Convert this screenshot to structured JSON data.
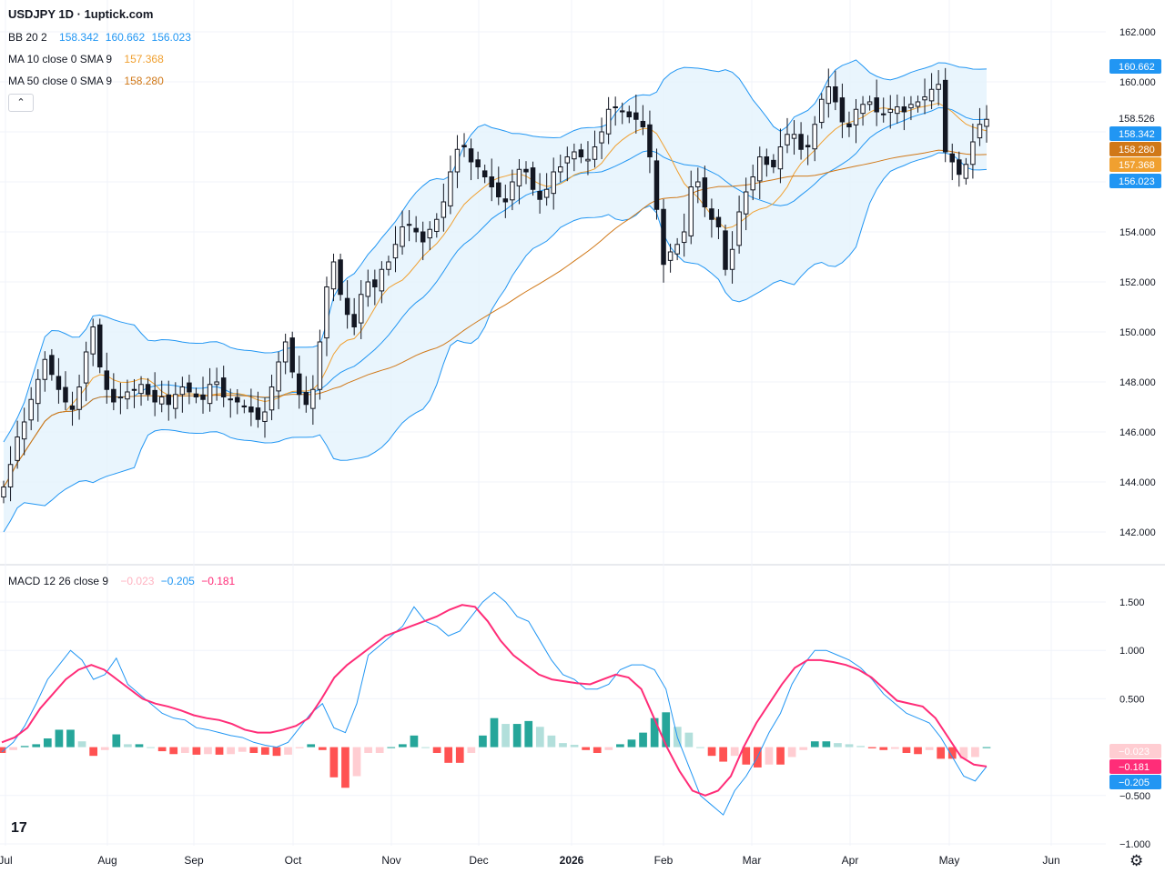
{
  "title": "USDJPY 1D · 1uptick.com",
  "legend": {
    "bb": {
      "label": "BB 20 2",
      "v1": "158.342",
      "v2": "160.662",
      "v3": "156.023"
    },
    "ma10": {
      "label": "MA 10 close 0 SMA 9",
      "value": "157.368"
    },
    "ma50": {
      "label": "MA 50 close 0 SMA 9",
      "value": "158.280"
    },
    "macd": {
      "label": "MACD 12 26 close 9",
      "v1": "−0.023",
      "v2": "−0.205",
      "v3": "−0.181"
    }
  },
  "collapse_icon": "chevron-up-icon",
  "settings_icon": "gear-icon",
  "logo_text": "17",
  "colors": {
    "up": "#ffffff",
    "down": "#131722",
    "wick": "#131722",
    "bb": "#2196f3",
    "bb_fill": "#e3f2fd",
    "ma10": "#f0a030",
    "ma50": "#d07818",
    "macd": "#2196f3",
    "signal": "#ff2d78",
    "hist_up_strong": "#26a69a",
    "hist_up_weak": "#b2dfdb",
    "hist_dn_strong": "#ff5252",
    "hist_dn_weak": "#ffcdd2"
  },
  "chart_data": [
    {
      "type": "candlestick",
      "title": "USDJPY 1D",
      "ylim": [
        141,
        162.2
      ],
      "yticks": [
        "162.000",
        "160.000",
        "158.000",
        "156.000",
        "154.000",
        "152.000",
        "150.000",
        "148.000",
        "146.000",
        "144.000",
        "142.000"
      ],
      "ytick_values": [
        162,
        160,
        158,
        156,
        154,
        152,
        150,
        148,
        146,
        144,
        142
      ],
      "xticks": [
        "Jul",
        "Aug",
        "Sep",
        "Oct",
        "Nov",
        "Dec",
        "2026",
        "Feb",
        "Mar",
        "Apr",
        "May",
        "Jun"
      ],
      "close_approx": [
        143.8,
        144.7,
        145.8,
        146.4,
        147.3,
        148.1,
        148.9,
        148.3,
        147.7,
        147.2,
        146.9,
        147.8,
        149.2,
        150.2,
        148.6,
        147.7,
        147.2,
        147.4,
        147.6,
        147.7,
        147.9,
        147.5,
        147.2,
        147.4,
        147.1,
        147.5,
        147.8,
        147.6,
        147.4,
        147.3,
        147.9,
        148.0,
        147.4,
        147.3,
        147.2,
        147.0,
        146.8,
        146.5,
        146.8,
        147.8,
        148.8,
        149.6,
        148.4,
        147.5,
        147.1,
        147.7,
        149.6,
        151.8,
        152.8,
        151.5,
        150.7,
        150.2,
        151.5,
        152.0,
        151.8,
        152.5,
        152.8,
        153.5,
        154.2,
        154.3,
        154.0,
        153.6,
        154.1,
        154.5,
        155.2,
        156.4,
        157.3,
        157.4,
        156.8,
        156.6,
        156.2,
        155.8,
        155.4,
        155.2,
        156.0,
        156.5,
        156.4,
        155.7,
        155.3,
        155.7,
        156.4,
        156.6,
        157.0,
        157.2,
        157.0,
        156.9,
        157.4,
        158.0,
        158.9,
        159.0,
        158.8,
        158.6,
        158.5,
        158.2,
        157.0,
        154.9,
        152.7,
        153.2,
        153.5,
        154.0,
        155.8,
        156.0,
        155.0,
        154.5,
        154.2,
        152.5,
        153.3,
        154.8,
        155.6,
        156.2,
        157.0,
        156.7,
        156.6,
        157.4,
        157.9,
        157.9,
        157.3,
        157.4,
        158.3,
        159.3,
        159.8,
        159.2,
        158.4,
        158.2,
        158.9,
        159.1,
        159.2,
        158.8,
        158.7,
        158.9,
        159.0,
        158.8,
        159.1,
        159.2,
        159.4,
        159.7,
        159.9,
        157.2,
        156.8,
        156.3,
        156.7,
        157.6,
        158.3,
        158.5
      ],
      "bollinger": {
        "basis": "158.342",
        "upper": "160.662",
        "lower": "156.023"
      },
      "ma10": "157.368",
      "ma50": "158.280",
      "last_price": "158.526"
    },
    {
      "type": "macd",
      "title": "MACD 12 26 close 9",
      "ylim": [
        -1.1,
        1.75
      ],
      "yticks": [
        "1.500",
        "1.000",
        "0.500",
        "−0.500",
        "−1.000"
      ],
      "ytick_values": [
        1.5,
        1.0,
        0.5,
        -0.5,
        -1.0
      ],
      "macd_approx": [
        -0.05,
        0.05,
        0.22,
        0.45,
        0.7,
        0.85,
        1.0,
        0.9,
        0.7,
        0.75,
        0.92,
        0.65,
        0.55,
        0.45,
        0.35,
        0.3,
        0.28,
        0.2,
        0.18,
        0.15,
        0.12,
        0.1,
        0.05,
        0.02,
        0.0,
        0.05,
        0.2,
        0.35,
        0.45,
        0.2,
        0.15,
        0.45,
        0.95,
        1.05,
        1.15,
        1.25,
        1.45,
        1.3,
        1.25,
        1.15,
        1.2,
        1.35,
        1.5,
        1.6,
        1.5,
        1.35,
        1.3,
        1.1,
        0.9,
        0.75,
        0.7,
        0.6,
        0.6,
        0.65,
        0.8,
        0.85,
        0.85,
        0.8,
        0.6,
        0.1,
        -0.2,
        -0.5,
        -0.6,
        -0.7,
        -0.45,
        -0.3,
        -0.1,
        0.15,
        0.35,
        0.65,
        0.85,
        1.0,
        1.0,
        0.95,
        0.9,
        0.82,
        0.7,
        0.55,
        0.45,
        0.35,
        0.3,
        0.25,
        0.1,
        -0.1,
        -0.3,
        -0.35,
        -0.2
      ],
      "signal_approx": [
        0.05,
        0.1,
        0.2,
        0.4,
        0.55,
        0.7,
        0.8,
        0.85,
        0.8,
        0.7,
        0.6,
        0.5,
        0.45,
        0.42,
        0.38,
        0.33,
        0.3,
        0.28,
        0.24,
        0.18,
        0.15,
        0.15,
        0.18,
        0.22,
        0.3,
        0.5,
        0.72,
        0.85,
        0.95,
        1.05,
        1.15,
        1.2,
        1.25,
        1.3,
        1.35,
        1.42,
        1.47,
        1.45,
        1.3,
        1.1,
        0.95,
        0.85,
        0.75,
        0.7,
        0.68,
        0.66,
        0.65,
        0.7,
        0.75,
        0.72,
        0.6,
        0.3,
        0.0,
        -0.25,
        -0.45,
        -0.5,
        -0.45,
        -0.3,
        0.0,
        0.25,
        0.45,
        0.65,
        0.82,
        0.9,
        0.9,
        0.88,
        0.85,
        0.8,
        0.72,
        0.6,
        0.48,
        0.45,
        0.42,
        0.3,
        0.1,
        -0.1,
        -0.18,
        -0.2
      ],
      "macd_value": "−0.205",
      "signal_value": "−0.181",
      "hist_value": "−0.023"
    }
  ]
}
